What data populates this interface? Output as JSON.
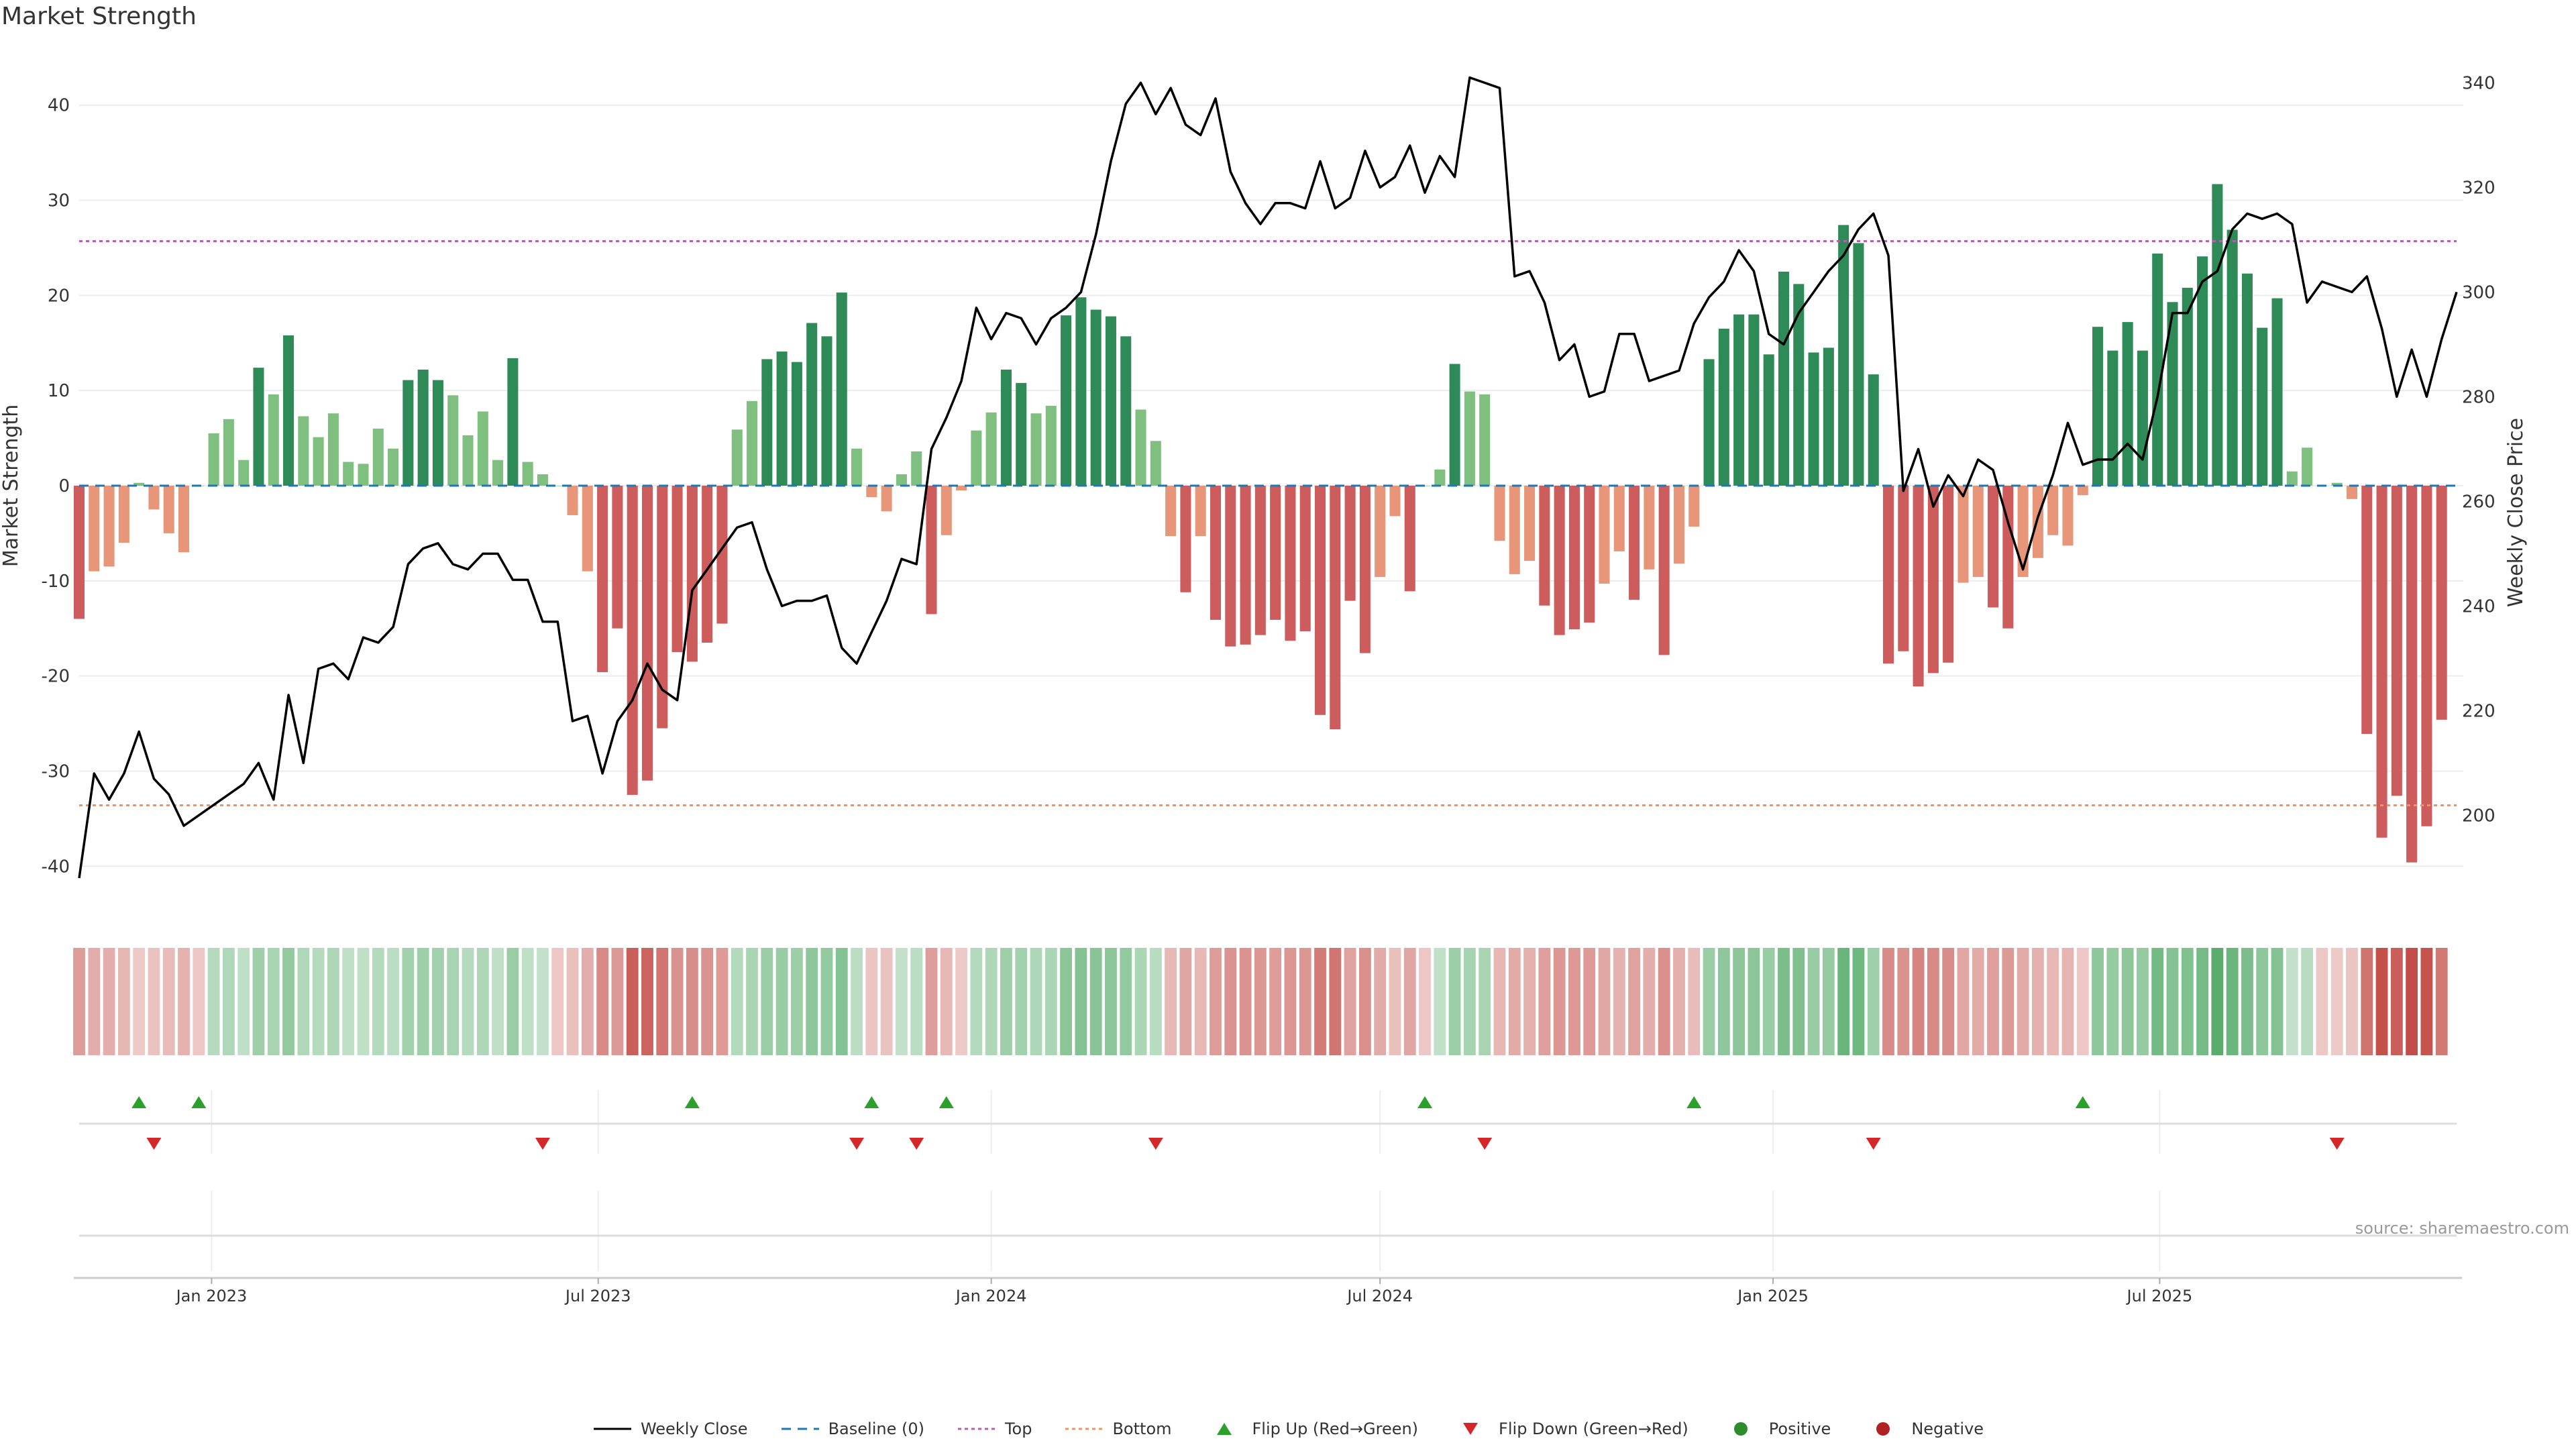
{
  "chart_data": {
    "type": "bar",
    "title": "Market Strength",
    "ylabel": "Market Strength",
    "y2label": "Weekly Close Price",
    "ylim": [
      -44,
      44
    ],
    "y2lim": [
      183,
      343
    ],
    "yticks": [
      40,
      30,
      20,
      10,
      0,
      -10,
      -20,
      -30,
      -40
    ],
    "y2ticks": [
      340,
      320,
      300,
      280,
      260,
      240,
      220,
      200
    ],
    "xlim": [
      "2022-10-31",
      "2025-11-17"
    ],
    "xticks": [
      {
        "date": "2023-01-01",
        "label": "Jan 2023"
      },
      {
        "date": "2023-07-01",
        "label": "Jul 2023"
      },
      {
        "date": "2024-01-01",
        "label": "Jan 2024"
      },
      {
        "date": "2024-07-01",
        "label": "Jul 2024"
      },
      {
        "date": "2025-01-01",
        "label": "Jan 2025"
      },
      {
        "date": "2025-07-01",
        "label": "Jul 2025"
      }
    ],
    "first_week": "2022-10-31",
    "top_line": 25.7,
    "bottom_line": -33.6,
    "series": [
      {
        "name": "Weekly Close",
        "type": "line",
        "axis": "right",
        "values": [
          188,
          208,
          203,
          208,
          216,
          207,
          204,
          198,
          200,
          202,
          204,
          206,
          210,
          203,
          223,
          210,
          228,
          229,
          226,
          234,
          233,
          236,
          248,
          251,
          252,
          248,
          247,
          250,
          250,
          245,
          245,
          237,
          237,
          218,
          219,
          208,
          218,
          222,
          229,
          224,
          222,
          243,
          247,
          251,
          255,
          256,
          247,
          240,
          241,
          241,
          242,
          232,
          229,
          235,
          241,
          249,
          248,
          270,
          276,
          283,
          297,
          291,
          296,
          295,
          290,
          295,
          297,
          300,
          311,
          325,
          336,
          340,
          334,
          339,
          332,
          330,
          337,
          323,
          317,
          313,
          317,
          317,
          316,
          325,
          316,
          318,
          327,
          320,
          322,
          328,
          319,
          326,
          322,
          341,
          340,
          339,
          303,
          304,
          298,
          287,
          290,
          280,
          281,
          292,
          292,
          283,
          284,
          285,
          294,
          299,
          302,
          308,
          304,
          292,
          290,
          296,
          300,
          304,
          307,
          312,
          315,
          307,
          262,
          270,
          259,
          265,
          261,
          268,
          266,
          256,
          247,
          257,
          265,
          275,
          267,
          268,
          268,
          271,
          268,
          280,
          296,
          296,
          302,
          304,
          312,
          315,
          314,
          315,
          313,
          298,
          302,
          301,
          300,
          303,
          293,
          280,
          289,
          280,
          291,
          300
        ],
        "color": "#000000"
      },
      {
        "name": "Baseline (0)",
        "type": "hline",
        "value": 0,
        "color": "#1f77b4"
      },
      {
        "name": "Top",
        "type": "hline",
        "value": 25.7,
        "color": "#b060b0"
      },
      {
        "name": "Bottom",
        "type": "hline",
        "value": -33.6,
        "color": "#e8956a"
      },
      {
        "name": "Market Strength",
        "type": "bar",
        "axis": "left",
        "values": [
          -14,
          -9,
          -8.5,
          -6,
          0.3,
          -2.5,
          -5,
          -7,
          0,
          5.5,
          7,
          2.7,
          12.4,
          9.6,
          15.8,
          7.3,
          5.1,
          7.6,
          2.5,
          2.3,
          6,
          3.9,
          11.1,
          12.2,
          11.1,
          9.5,
          5.3,
          7.8,
          2.7,
          13.4,
          2.5,
          1.2,
          0,
          -3.1,
          -9,
          -19.6,
          -15,
          -32.5,
          -31,
          -25.5,
          -17.5,
          -18.5,
          -16.5,
          -14.5,
          5.9,
          8.9,
          13.3,
          14.1,
          13,
          17.1,
          15.7,
          20.3,
          3.9,
          -1.2,
          -2.7,
          1.2,
          3.6,
          -13.5,
          -5.2,
          -0.5,
          5.8,
          7.7,
          12.2,
          10.8,
          7.6,
          8.4,
          17.9,
          19.8,
          18.5,
          17.8,
          15.7,
          8,
          4.7,
          -5.3,
          -11.2,
          -5.3,
          -14.1,
          -16.9,
          -16.7,
          -15.7,
          -14.1,
          -16.3,
          -15.3,
          -24.1,
          -25.6,
          -12.1,
          -17.6,
          -9.6,
          -3.2,
          -11.1,
          0,
          1.7,
          12.8,
          9.9,
          9.6,
          -5.8,
          -9.3,
          -7.9,
          -12.6,
          -15.7,
          -15.1,
          -14.4,
          -10.3,
          -6.9,
          -12,
          -8.8,
          -17.8,
          -8.2,
          -4.3,
          13.3,
          16.5,
          18,
          18,
          13.8,
          22.5,
          21.2,
          14,
          14.5,
          27.4,
          25.5,
          11.7,
          -18.7,
          -17.4,
          -21.1,
          -19.7,
          -18.6,
          -10.2,
          -9.6,
          -12.8,
          -15,
          -9.6,
          -7.6,
          -5.2,
          -6.3,
          -1,
          16.7,
          14.2,
          17.2,
          14.2,
          24.4,
          19.3,
          20.8,
          24.1,
          31.7,
          26.9,
          22.3,
          16.6,
          19.7,
          1.5,
          4,
          0,
          0.3,
          -1.4,
          -26.1,
          -37,
          -32.6,
          -39.6,
          -35.8,
          -24.6
        ]
      },
      {
        "name": "Flip Up (Red→Green)",
        "type": "marker",
        "symbol": "triangle-up",
        "color": "#2ca02c",
        "weeks": [
          4,
          8,
          41,
          53,
          58,
          90,
          108,
          134
        ]
      },
      {
        "name": "Flip Down (Green→Red)",
        "type": "marker",
        "symbol": "triangle-down",
        "color": "#d62728",
        "weeks": [
          5,
          31,
          52,
          56,
          72,
          94,
          120,
          151
        ]
      },
      {
        "name": "Positive",
        "type": "marker",
        "symbol": "circle",
        "color": "#2e8b2e",
        "weeks": []
      },
      {
        "name": "Negative",
        "type": "marker",
        "symbol": "circle",
        "color": "#b22222",
        "weeks": []
      }
    ]
  },
  "source": "source: sharemaestro.com",
  "colors": {
    "strong_green": "#2e8b57",
    "light_green": "#7fbf7f",
    "strong_red": "#cd5c5c",
    "light_red": "#e8967a",
    "line": "#000000",
    "baseline": "#1f77b4",
    "top": "#b060b0",
    "bottom": "#e8956a",
    "flip_up": "#2ca02c",
    "flip_down": "#d62728"
  }
}
